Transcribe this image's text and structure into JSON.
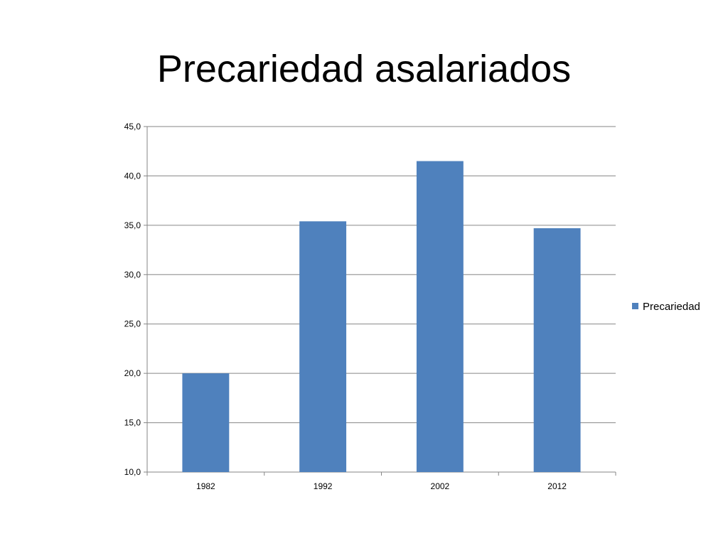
{
  "slide": {
    "title": "Precariedad asalariados"
  },
  "chart_data": {
    "type": "bar",
    "categories": [
      "1982",
      "1992",
      "2002",
      "2012"
    ],
    "series": [
      {
        "name": "Precariedad",
        "values": [
          20.0,
          35.4,
          41.5,
          34.7
        ],
        "color": "#4F81BD"
      }
    ],
    "ylim": [
      10,
      45
    ],
    "yticks": [
      10,
      15,
      20,
      25,
      30,
      35,
      40,
      45
    ],
    "ytick_labels": [
      "10,0",
      "15,0",
      "20,0",
      "25,0",
      "30,0",
      "35,0",
      "40,0",
      "45,0"
    ],
    "grid": true,
    "legend": "right",
    "title": "",
    "xlabel": "",
    "ylabel": ""
  }
}
